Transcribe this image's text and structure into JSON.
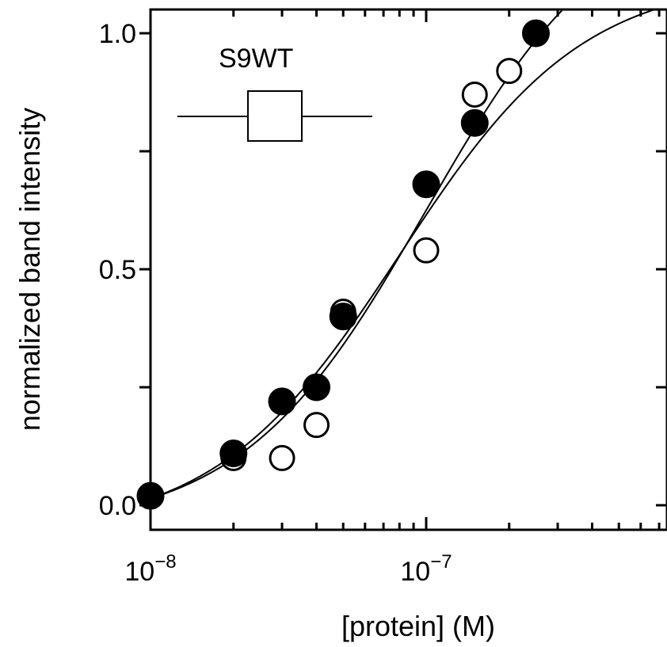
{
  "chart_data": {
    "type": "scatter",
    "title": "",
    "xlabel": "[protein] (M)",
    "ylabel": "normalized band intensity",
    "x_scale": "log",
    "xlim": [
      1e-08,
      1e-06
    ],
    "ylim": [
      -0.05,
      1.05
    ],
    "x_tick_labels": [
      {
        "value": 1e-08,
        "base": "10",
        "exp": "−8"
      },
      {
        "value": 1e-07,
        "base": "10",
        "exp": "−7"
      }
    ],
    "y_tick_labels": [
      {
        "value": 0.0,
        "label": "0.0"
      },
      {
        "value": 0.5,
        "label": "0.5"
      },
      {
        "value": 1.0,
        "label": "1.0"
      }
    ],
    "legend": {
      "label": "S9WT",
      "marker": "open-square",
      "placement": "top-left"
    },
    "series": [
      {
        "marker": "filled-circle",
        "x": [
          1e-08,
          2e-08,
          3e-08,
          4e-08,
          5e-08,
          1e-07,
          1.5e-07,
          2.5e-07
        ],
        "y": [
          0.02,
          0.11,
          0.22,
          0.25,
          0.4,
          0.68,
          0.81,
          1.0
        ],
        "fit": {
          "model": "hill",
          "K": 8e-08,
          "n": 1.3,
          "max": 1.18,
          "offset": -0.06
        }
      },
      {
        "marker": "open-circle",
        "x": [
          1e-08,
          2e-08,
          3e-08,
          4e-08,
          5e-08,
          1e-07,
          1.5e-07,
          2e-07,
          2.5e-07
        ],
        "y": [
          0.02,
          0.1,
          0.1,
          0.17,
          0.41,
          0.54,
          0.87,
          0.92,
          1.0
        ],
        "fit": {
          "model": "hill",
          "K": 1e-07,
          "n": 1.3,
          "max": 1.35,
          "offset": -0.05
        }
      }
    ]
  }
}
